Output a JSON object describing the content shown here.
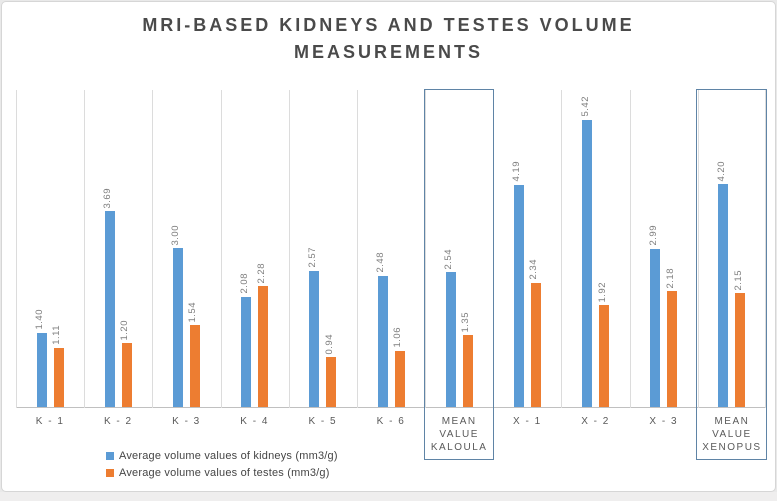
{
  "chart_data": {
    "type": "bar",
    "title": "MRI-BASED KIDNEYS AND TESTES VOLUME MEASUREMENTS",
    "title_lines": [
      "MRI-BASED KIDNEYS AND TESTES VOLUME",
      "MEASUREMENTS"
    ],
    "categories": [
      {
        "label": "K - 1",
        "lines": [
          "K - 1"
        ],
        "boxed": false
      },
      {
        "label": "K - 2",
        "lines": [
          "K - 2"
        ],
        "boxed": false
      },
      {
        "label": "K - 3",
        "lines": [
          "K - 3"
        ],
        "boxed": false
      },
      {
        "label": "K - 4",
        "lines": [
          "K - 4"
        ],
        "boxed": false
      },
      {
        "label": "K - 5",
        "lines": [
          "K - 5"
        ],
        "boxed": false
      },
      {
        "label": "K - 6",
        "lines": [
          "K - 6"
        ],
        "boxed": false
      },
      {
        "label": "MEAN VALUE KALOULA",
        "lines": [
          "MEAN",
          "VALUE",
          "KALOULA"
        ],
        "boxed": true
      },
      {
        "label": "X - 1",
        "lines": [
          "X - 1"
        ],
        "boxed": false
      },
      {
        "label": "X - 2",
        "lines": [
          "X - 2"
        ],
        "boxed": false
      },
      {
        "label": "X - 3",
        "lines": [
          "X - 3"
        ],
        "boxed": false
      },
      {
        "label": "MEAN VALUE XENOPUS",
        "lines": [
          "MEAN",
          "VALUE",
          "XENOPUS"
        ],
        "boxed": true
      }
    ],
    "series": [
      {
        "name": "Average volume values of kidneys (mm3/g)",
        "color": "#5B9BD5",
        "values": [
          1.4,
          3.69,
          3.0,
          2.08,
          2.57,
          2.48,
          2.54,
          4.19,
          5.42,
          2.99,
          4.2
        ]
      },
      {
        "name": "Average volume values of testes (mm3/g)",
        "color": "#ED7D31",
        "values": [
          1.11,
          1.2,
          1.54,
          2.28,
          0.94,
          1.06,
          1.35,
          2.34,
          1.92,
          2.18,
          2.15
        ]
      }
    ],
    "ylim": [
      0,
      6
    ],
    "value_label_decimals": 2,
    "data_labels": "rotated-90-above-bars",
    "gridlines": "vertical-category-separators",
    "legend_position": "bottom-left",
    "highlighted_categories": [
      "MEAN VALUE KALOULA",
      "MEAN VALUE XENOPUS"
    ],
    "colors": {
      "kidneys_bar": "#5B9BD5",
      "testes_bar": "#ED7D31",
      "highlight_box_border": "#5F84A6",
      "gridline": "#DCDCDC",
      "axis_line": "#C0C0C0",
      "value_label_text": "#7F7F7F",
      "category_label_text": "#595959",
      "title_text": "#4A4A4A",
      "legend_text": "#454545"
    }
  }
}
